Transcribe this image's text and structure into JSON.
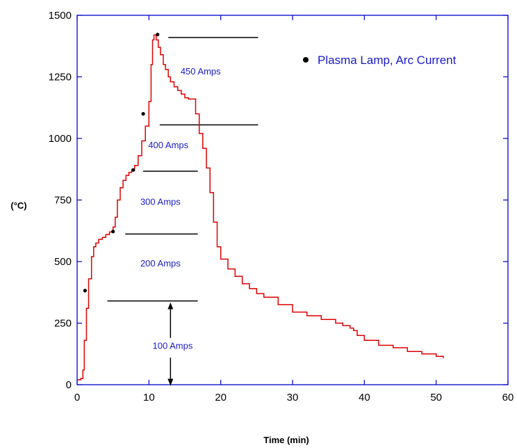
{
  "colors": {
    "axis": "#0000cc",
    "curve": "#dd0000",
    "marker": "#000000",
    "label": "#1a1acc",
    "band_line": "#000000"
  },
  "chart_data": {
    "type": "line",
    "title": "",
    "xlabel": "Time (min)",
    "ylabel": "(°C)",
    "xlim": [
      0,
      60
    ],
    "ylim": [
      0,
      1500
    ],
    "xticks": [
      "0",
      "10",
      "20",
      "30",
      "40",
      "50",
      "60"
    ],
    "yticks": [
      "0",
      "250",
      "500",
      "750",
      "1000",
      "1250",
      "1500"
    ],
    "grid": false,
    "legend_position": "top-right",
    "series": [
      {
        "kind": "line",
        "x": [
          0,
          0.5,
          0.8,
          1.0,
          1.3,
          1.6,
          2.0,
          2.3,
          2.6,
          3.0,
          3.5,
          4.0,
          4.5,
          5.0,
          5.3,
          5.6,
          6.0,
          6.4,
          6.8,
          7.2,
          7.6,
          8.0,
          8.5,
          9.0,
          9.5,
          10.0,
          10.3,
          10.5,
          10.7,
          11.0,
          11.3,
          11.6,
          12.0,
          12.3,
          12.7,
          13.0,
          13.5,
          14.0,
          14.5,
          15.0,
          15.5,
          16.0,
          16.5,
          17.0,
          17.5,
          18.0,
          18.5,
          19.0,
          19.5,
          20.0,
          21.0,
          22.0,
          23.0,
          24.0,
          25.0,
          26.0,
          28.0,
          30.0,
          32.0,
          34.0,
          36.0,
          37.0,
          38.0,
          38.5,
          39.0,
          40.0,
          42.0,
          44.0,
          46.0,
          48.0,
          50.0,
          51.0
        ],
        "y": [
          20,
          25,
          60,
          180,
          310,
          430,
          520,
          560,
          575,
          590,
          598,
          610,
          620,
          640,
          680,
          750,
          800,
          830,
          850,
          862,
          870,
          890,
          930,
          990,
          1050,
          1150,
          1300,
          1400,
          1420,
          1400,
          1370,
          1340,
          1300,
          1280,
          1250,
          1230,
          1210,
          1195,
          1180,
          1165,
          1160,
          1160,
          1100,
          1020,
          960,
          880,
          780,
          660,
          560,
          510,
          470,
          440,
          410,
          390,
          370,
          355,
          325,
          295,
          280,
          265,
          250,
          240,
          230,
          220,
          200,
          180,
          160,
          150,
          135,
          125,
          115,
          108
        ]
      },
      {
        "kind": "markers",
        "name": "Plasma Lamp,  Arc Current",
        "x": [
          1.1,
          5.0,
          7.8,
          9.2,
          11.2
        ],
        "y": [
          382,
          622,
          872,
          1100,
          1422
        ]
      }
    ],
    "bands": [
      {
        "label": "450 Amps",
        "label_x": 17.2,
        "label_y": 1260
      },
      {
        "label": "400 Amps",
        "label_x": 12.7,
        "label_y": 960
      },
      {
        "label": "300 Amps",
        "label_x": 11.6,
        "label_y": 730
      },
      {
        "label": "200 Amps",
        "label_x": 11.6,
        "label_y": 480
      },
      {
        "label": "100 Amps",
        "label_x": 13.3,
        "label_y": 145
      }
    ],
    "band_lines": [
      {
        "x1": 12.7,
        "x2": 25.2,
        "y": 1410
      },
      {
        "x1": 11.5,
        "x2": 25.2,
        "y": 1055
      },
      {
        "x1": 9.2,
        "x2": 16.8,
        "y": 867
      },
      {
        "x1": 6.7,
        "x2": 16.8,
        "y": 612
      },
      {
        "x1": 4.2,
        "x2": 16.8,
        "y": 340
      }
    ],
    "arrows": [
      {
        "x": 13.0,
        "y_from": 190,
        "y_to": 320
      },
      {
        "x": 13.0,
        "y_from": 110,
        "y_to": 10
      }
    ]
  }
}
